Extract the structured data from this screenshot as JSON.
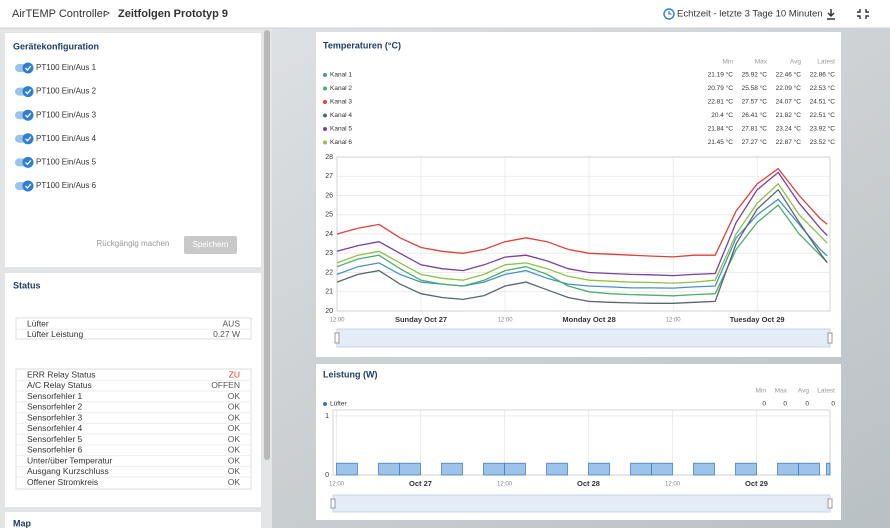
{
  "header": {
    "app": "AirTEMP Controller",
    "separator": ">",
    "page": "Zeitfolgen Prototyp 9",
    "range": "Echtzeit - letzte 3 Tage 10 Minuten"
  },
  "config": {
    "title": "Gerätekonfiguration",
    "toggles": [
      "PT100 Ein/Aus 1",
      "PT100 Ein/Aus 2",
      "PT100 Ein/Aus 3",
      "PT100 Ein/Aus 4",
      "PT100 Ein/Aus 5",
      "PT100 Ein/Aus 6"
    ],
    "undo": "Rückgängig machen",
    "save": "Speichern"
  },
  "status": {
    "title": "Status",
    "table1": [
      [
        "Lüfter",
        "AUS"
      ],
      [
        "Lüfter Leistung",
        "0.27 W"
      ]
    ],
    "table2": [
      [
        "ERR Relay Status",
        "ZU"
      ],
      [
        "A/C Relay Status",
        "OFFEN"
      ],
      [
        "Sensorfehler 1",
        "OK"
      ],
      [
        "Sensorfehler 2",
        "OK"
      ],
      [
        "Sensorfehler 3",
        "OK"
      ],
      [
        "Sensorfehler 4",
        "OK"
      ],
      [
        "Sensorfehler 5",
        "OK"
      ],
      [
        "Sensorfehler 6",
        "OK"
      ],
      [
        "Unter/über Temperatur",
        "OK"
      ],
      [
        "Ausgang Kurzschluss",
        "OK"
      ],
      [
        "Offener Stromkreis",
        "OK"
      ]
    ]
  },
  "map": {
    "title": "Map"
  },
  "chart_data": [
    {
      "type": "line",
      "title": "Temperaturen (°C)",
      "stat_headers": [
        "Min",
        "Max",
        "Avg",
        "Latest"
      ],
      "x": [
        "Oct 26 12:00",
        "Oct 26 15:00",
        "Oct 26 18:00",
        "Oct 26 21:00",
        "Oct 27 00:00",
        "Oct 27 03:00",
        "Oct 27 06:00",
        "Oct 27 09:00",
        "Oct 27 12:00",
        "Oct 27 15:00",
        "Oct 27 18:00",
        "Oct 27 21:00",
        "Oct 28 00:00",
        "Oct 28 03:00",
        "Oct 28 06:00",
        "Oct 28 09:00",
        "Oct 28 12:00",
        "Oct 28 15:00",
        "Oct 28 18:00",
        "Oct 28 21:00",
        "Oct 29 00:00",
        "Oct 29 03:00",
        "Oct 29 06:00",
        "Oct 29 09:00",
        "Oct 29 10:00"
      ],
      "xlim": [
        "Oct 26 12:00",
        "Oct 29 10:24"
      ],
      "xticks": [
        {
          "value": "Oct 26 12:00",
          "label": "12:00"
        },
        {
          "value": "Oct 27 00:00",
          "label": "Sunday Oct 27"
        },
        {
          "value": "Oct 27 12:00",
          "label": "12:00"
        },
        {
          "value": "Oct 28 00:00",
          "label": "Monday Oct 28"
        },
        {
          "value": "Oct 28 12:00",
          "label": "12:00"
        },
        {
          "value": "Oct 29 00:00",
          "label": "Tuesday Oct 29"
        }
      ],
      "ylim": [
        20,
        28
      ],
      "yticks": [
        20,
        21,
        22,
        23,
        24,
        25,
        26,
        27,
        28
      ],
      "grid": true,
      "series": [
        {
          "name": "Kanal 1",
          "color": "#4a8fc9",
          "stats": [
            "21.19 °C",
            "25.92 °C",
            "22.46 °C",
            "22.86 °C"
          ],
          "values": [
            21.9,
            22.3,
            22.5,
            21.9,
            21.5,
            21.4,
            21.3,
            21.5,
            21.9,
            22.1,
            21.7,
            21.4,
            21.3,
            21.25,
            21.2,
            21.2,
            21.19,
            21.25,
            21.3,
            23.8,
            25.0,
            25.8,
            24.5,
            23.2,
            22.86
          ]
        },
        {
          "name": "Kanal 2",
          "color": "#4caf6a",
          "stats": [
            "20.79 °C",
            "25.58 °C",
            "22.09 °C",
            "22.53 °C"
          ],
          "values": [
            22.3,
            22.7,
            22.9,
            22.2,
            21.6,
            21.4,
            21.3,
            21.6,
            22.1,
            22.3,
            21.9,
            21.3,
            21.0,
            20.9,
            20.85,
            20.82,
            20.79,
            20.85,
            20.9,
            23.2,
            24.6,
            25.5,
            24.0,
            22.9,
            22.53
          ]
        },
        {
          "name": "Kanal 3",
          "color": "#e0403a",
          "stats": [
            "22.81 °C",
            "27.57 °C",
            "24.07 °C",
            "24.51 °C"
          ],
          "values": [
            24.0,
            24.3,
            24.5,
            23.8,
            23.3,
            23.1,
            23.0,
            23.2,
            23.6,
            23.8,
            23.6,
            23.2,
            23.0,
            22.95,
            22.9,
            22.85,
            22.81,
            22.9,
            22.9,
            25.2,
            26.6,
            27.4,
            26.0,
            24.8,
            24.51
          ]
        },
        {
          "name": "Kanal 4",
          "color": "#56676f",
          "stats": [
            "20.4 °C",
            "26.41 °C",
            "21.82 °C",
            "22.51 °C"
          ],
          "values": [
            21.5,
            21.9,
            22.1,
            21.4,
            20.9,
            20.7,
            20.6,
            20.8,
            21.3,
            21.5,
            21.1,
            20.7,
            20.5,
            20.45,
            20.42,
            20.4,
            20.4,
            20.45,
            20.5,
            23.5,
            25.3,
            26.3,
            24.6,
            23.0,
            22.51
          ]
        },
        {
          "name": "Kanal 5",
          "color": "#7b3f9e",
          "stats": [
            "21.84 °C",
            "27.81 °C",
            "23.24 °C",
            "23.92 °C"
          ],
          "values": [
            23.1,
            23.4,
            23.6,
            23.0,
            22.4,
            22.2,
            22.1,
            22.4,
            22.8,
            22.9,
            22.6,
            22.2,
            22.0,
            21.95,
            21.9,
            21.88,
            21.84,
            21.9,
            21.95,
            24.6,
            26.3,
            27.2,
            25.6,
            24.3,
            23.92
          ]
        },
        {
          "name": "Kanal 6",
          "color": "#8fc04a",
          "stats": [
            "21.45 °C",
            "27.27 °C",
            "22.87 °C",
            "23.52 °C"
          ],
          "values": [
            22.5,
            22.9,
            23.1,
            22.5,
            21.9,
            21.7,
            21.6,
            21.9,
            22.4,
            22.5,
            22.2,
            21.8,
            21.6,
            21.55,
            21.5,
            21.48,
            21.45,
            21.5,
            21.6,
            24.0,
            25.6,
            26.6,
            25.0,
            23.9,
            23.52
          ]
        }
      ]
    },
    {
      "type": "step-area",
      "title": "Leistung (W)",
      "stat_headers": [
        "Min",
        "Max",
        "Avg",
        "Latest"
      ],
      "x": [
        "Oct 26 12:00",
        "Oct 26 15:00",
        "Oct 26 18:00",
        "Oct 26 21:00",
        "Oct 27 00:00",
        "Oct 27 03:00",
        "Oct 27 06:00",
        "Oct 27 09:00",
        "Oct 27 12:00",
        "Oct 27 15:00",
        "Oct 27 18:00",
        "Oct 27 21:00",
        "Oct 28 00:00",
        "Oct 28 03:00",
        "Oct 28 06:00",
        "Oct 28 09:00",
        "Oct 28 12:00",
        "Oct 28 15:00",
        "Oct 28 18:00",
        "Oct 28 21:00",
        "Oct 29 00:00",
        "Oct 29 03:00",
        "Oct 29 06:00",
        "Oct 29 09:00",
        "Oct 29 10:00"
      ],
      "xlim": [
        "Oct 26 11:30",
        "Oct 29 10:30"
      ],
      "xticks": [
        {
          "value": "Oct 26 12:00",
          "label": "12:00"
        },
        {
          "value": "Oct 27 00:00",
          "label": "Oct 27"
        },
        {
          "value": "Oct 27 12:00",
          "label": "12:00"
        },
        {
          "value": "Oct 28 00:00",
          "label": "Oct 28"
        },
        {
          "value": "Oct 28 12:00",
          "label": "12:00"
        },
        {
          "value": "Oct 29 00:00",
          "label": "Oct 29"
        }
      ],
      "ylim": [
        0,
        1.1
      ],
      "yticks": [
        0,
        1
      ],
      "grid": true,
      "series": [
        {
          "name": "Lüfter",
          "color": "#3a78b5",
          "stats": [
            "0",
            "0",
            "0",
            "0"
          ],
          "values": [
            0.2,
            0,
            0.2,
            0.2,
            0,
            0.2,
            0,
            0.2,
            0.2,
            0,
            0.2,
            0,
            0.2,
            0,
            0.2,
            0.2,
            0,
            0.2,
            0,
            0.2,
            0,
            0.2,
            0.2,
            0,
            0.2
          ]
        }
      ]
    }
  ]
}
